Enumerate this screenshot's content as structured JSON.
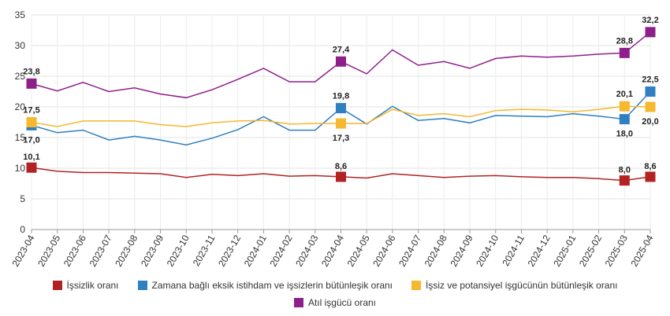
{
  "chart_data": {
    "type": "line",
    "x": [
      "2023-04",
      "2023-05",
      "2023-06",
      "2023-07",
      "2023-08",
      "2023-09",
      "2023-10",
      "2023-11",
      "2023-12",
      "2024-01",
      "2024-02",
      "2024-03",
      "2024-04",
      "2024-05",
      "2024-06",
      "2024-07",
      "2024-08",
      "2024-09",
      "2024-10",
      "2024-11",
      "2024-12",
      "2025-01",
      "2025-02",
      "2025-03",
      "2025-04"
    ],
    "ylim": [
      0,
      35
    ],
    "yticks": [
      0,
      5,
      10,
      15,
      20,
      25,
      30,
      35
    ],
    "grid": true,
    "legend_position": "bottom",
    "series": [
      {
        "name": "İşsizlik oranı",
        "color": "#b22222",
        "values": [
          10.1,
          9.5,
          9.3,
          9.3,
          9.2,
          9.1,
          8.5,
          9.0,
          8.8,
          9.1,
          8.7,
          8.8,
          8.6,
          8.4,
          9.1,
          8.8,
          8.5,
          8.7,
          8.8,
          8.6,
          8.5,
          8.5,
          8.3,
          8.0,
          8.6
        ],
        "labels": [
          {
            "x": "2023-04",
            "text": "10,1"
          },
          {
            "x": "2024-04",
            "text": "8,6"
          },
          {
            "x": "2025-03",
            "text": "8,0"
          },
          {
            "x": "2025-04",
            "text": "8,6"
          }
        ]
      },
      {
        "name": "Zamana bağlı eksik istihdam ve işsizlerin bütünleşik oranı",
        "color": "#2f7fc1",
        "values": [
          17.0,
          15.8,
          16.2,
          14.6,
          15.2,
          14.6,
          13.8,
          14.9,
          16.3,
          18.4,
          16.2,
          16.2,
          19.8,
          17.2,
          20.1,
          17.8,
          18.1,
          17.4,
          18.6,
          18.5,
          18.4,
          18.9,
          18.5,
          18.0,
          22.5
        ],
        "labels": [
          {
            "x": "2023-04",
            "text": "17,0"
          },
          {
            "x": "2024-04",
            "text": "19,8"
          },
          {
            "x": "2025-03",
            "text": "18,0"
          },
          {
            "x": "2025-04",
            "text": "22,5"
          }
        ]
      },
      {
        "name": "İşsiz ve potansiyel işgücünün bütünleşik oranı",
        "color": "#f5b82e",
        "values": [
          17.5,
          16.8,
          17.7,
          17.7,
          17.7,
          17.1,
          16.8,
          17.4,
          17.7,
          17.8,
          17.2,
          17.3,
          17.3,
          17.3,
          19.6,
          18.6,
          18.9,
          18.4,
          19.4,
          19.6,
          19.5,
          19.2,
          19.6,
          20.1,
          20.0
        ],
        "labels": [
          {
            "x": "2023-04",
            "text": "17,5"
          },
          {
            "x": "2024-04",
            "text": "17,3"
          },
          {
            "x": "2025-03",
            "text": "20,1"
          },
          {
            "x": "2025-04",
            "text": "20,0"
          }
        ]
      },
      {
        "name": "Atıl işgücü oranı",
        "color": "#8e1f8a",
        "values": [
          23.8,
          22.6,
          24.0,
          22.5,
          23.1,
          22.1,
          21.5,
          22.8,
          24.5,
          26.3,
          24.1,
          24.1,
          27.4,
          25.4,
          29.3,
          26.8,
          27.4,
          26.3,
          27.9,
          28.3,
          28.1,
          28.3,
          28.6,
          28.8,
          32.2
        ],
        "labels": [
          {
            "x": "2023-04",
            "text": "23,8"
          },
          {
            "x": "2024-04",
            "text": "27,4"
          },
          {
            "x": "2025-03",
            "text": "28,8"
          },
          {
            "x": "2025-04",
            "text": "32,2"
          }
        ]
      }
    ]
  }
}
